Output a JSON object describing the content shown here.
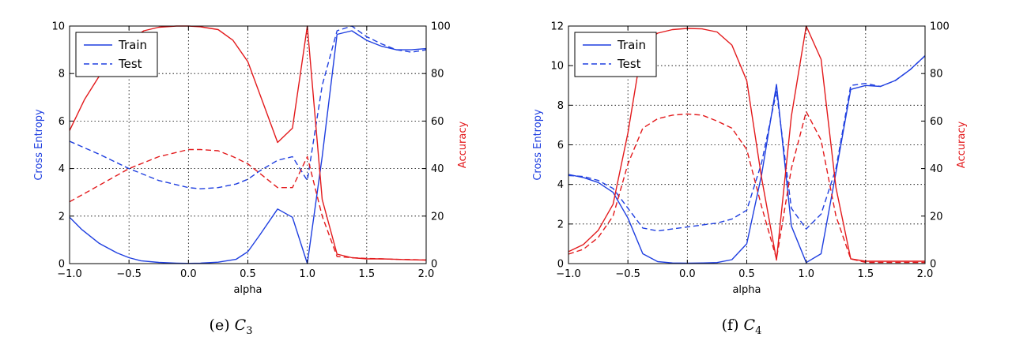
{
  "chart_data": [
    {
      "type": "line",
      "caption": "(e) C3",
      "caption_parts": {
        "prefix": "(e)",
        "symbol": "C",
        "subscript": "3"
      },
      "xlabel": "alpha",
      "ylabel_left": "Cross Entropy",
      "ylabel_right": "Accuracy",
      "xlim": [
        -1.0,
        2.0
      ],
      "ylim_left": [
        0,
        10
      ],
      "ylim_right": [
        0,
        100
      ],
      "xticks": [
        "−1.0",
        "−0.5",
        "0.0",
        "0.5",
        "1.0",
        "1.5",
        "2.0"
      ],
      "yticks_left": [
        "0",
        "2",
        "4",
        "6",
        "8",
        "10"
      ],
      "yticks_right": [
        "0",
        "20",
        "40",
        "60",
        "80",
        "100"
      ],
      "grid": true,
      "legend_position": "top-left",
      "legend": [
        {
          "label": "Train",
          "style": "solid",
          "color": "#1f3fe0"
        },
        {
          "label": "Test",
          "style": "dashed",
          "color": "#1f3fe0"
        }
      ],
      "colors": {
        "loss": "#1f3fe0",
        "accuracy": "#e31a1c"
      },
      "series": [
        {
          "axis": "left",
          "color": "#1f3fe0",
          "style": "solid",
          "x": [
            -1.0,
            -0.9,
            -0.75,
            -0.6,
            -0.5,
            -0.4,
            -0.25,
            -0.1,
            0.0,
            0.1,
            0.25,
            0.4,
            0.5,
            0.6,
            0.75,
            0.875,
            1.0,
            1.125,
            1.25,
            1.375,
            1.5,
            1.625,
            1.75,
            1.875,
            2.0
          ],
          "y": [
            1.95,
            1.45,
            0.85,
            0.45,
            0.25,
            0.12,
            0.05,
            0.02,
            0.01,
            0.02,
            0.06,
            0.18,
            0.5,
            1.2,
            2.3,
            1.95,
            0.0,
            4.5,
            9.65,
            9.8,
            9.4,
            9.15,
            9.0,
            9.0,
            9.05
          ]
        },
        {
          "axis": "left",
          "color": "#1f3fe0",
          "style": "dashed",
          "x": [
            -1.0,
            -0.75,
            -0.5,
            -0.25,
            0.0,
            0.1,
            0.25,
            0.4,
            0.5,
            0.6,
            0.75,
            0.875,
            1.0,
            1.125,
            1.25,
            1.375,
            1.5,
            1.625,
            1.75,
            1.875,
            2.0
          ],
          "y": [
            5.15,
            4.6,
            4.0,
            3.5,
            3.2,
            3.15,
            3.2,
            3.35,
            3.55,
            3.9,
            4.35,
            4.5,
            3.5,
            7.5,
            9.8,
            10.0,
            9.55,
            9.25,
            9.0,
            8.9,
            9.0
          ]
        },
        {
          "axis": "right",
          "color": "#e31a1c",
          "style": "solid",
          "x": [
            -1.0,
            -0.875,
            -0.75,
            -0.625,
            -0.5,
            -0.375,
            -0.25,
            -0.1,
            0.0,
            0.1,
            0.25,
            0.375,
            0.5,
            0.625,
            0.75,
            0.875,
            1.0,
            1.125,
            1.25,
            1.375,
            1.5,
            1.625,
            1.75,
            1.875,
            2.0
          ],
          "y": [
            56,
            69,
            79,
            88,
            94,
            98,
            99.5,
            100,
            100,
            99.7,
            98.5,
            94,
            85,
            68,
            51,
            57,
            100,
            27,
            4,
            2.5,
            2,
            2,
            1.8,
            1.6,
            1.5
          ]
        },
        {
          "axis": "right",
          "color": "#e31a1c",
          "style": "dashed",
          "x": [
            -1.0,
            -0.75,
            -0.5,
            -0.25,
            0.0,
            0.1,
            0.25,
            0.375,
            0.5,
            0.625,
            0.75,
            0.875,
            1.0,
            1.125,
            1.25,
            1.375,
            1.5,
            1.625,
            1.75,
            1.875,
            2.0
          ],
          "y": [
            26,
            33,
            40,
            45,
            48,
            48,
            47.5,
            45,
            42,
            37,
            32,
            32,
            45,
            20,
            3,
            2.5,
            2.2,
            2,
            1.8,
            1.7,
            1.5
          ]
        }
      ]
    },
    {
      "type": "line",
      "caption": "(f) C4",
      "caption_parts": {
        "prefix": "(f)",
        "symbol": "C",
        "subscript": "4"
      },
      "xlabel": "alpha",
      "ylabel_left": "Cross Entropy",
      "ylabel_right": "Accuracy",
      "xlim": [
        -1.0,
        2.0
      ],
      "ylim_left": [
        0,
        12
      ],
      "ylim_right": [
        0,
        100
      ],
      "xticks": [
        "−1.0",
        "−0.5",
        "0.0",
        "0.5",
        "1.0",
        "1.5",
        "2.0"
      ],
      "yticks_left": [
        "0",
        "2",
        "4",
        "6",
        "8",
        "10",
        "12"
      ],
      "yticks_right": [
        "0",
        "20",
        "40",
        "60",
        "80",
        "100"
      ],
      "grid": true,
      "legend_position": "top-left",
      "legend": [
        {
          "label": "Train",
          "style": "solid",
          "color": "#1f3fe0"
        },
        {
          "label": "Test",
          "style": "dashed",
          "color": "#1f3fe0"
        }
      ],
      "colors": {
        "loss": "#1f3fe0",
        "accuracy": "#e31a1c"
      },
      "series": [
        {
          "axis": "left",
          "color": "#1f3fe0",
          "style": "solid",
          "x": [
            -1.0,
            -0.875,
            -0.75,
            -0.625,
            -0.5,
            -0.375,
            -0.25,
            -0.125,
            0.0,
            0.125,
            0.25,
            0.375,
            0.5,
            0.625,
            0.75,
            0.875,
            1.0,
            1.125,
            1.25,
            1.375,
            1.5,
            1.625,
            1.75,
            1.875,
            2.0
          ],
          "y": [
            4.5,
            4.35,
            4.1,
            3.6,
            2.3,
            0.5,
            0.1,
            0.03,
            0.02,
            0.03,
            0.05,
            0.2,
            1.0,
            4.5,
            9.05,
            1.9,
            0.05,
            0.5,
            4.6,
            8.8,
            9.0,
            8.95,
            9.25,
            9.8,
            10.5
          ]
        },
        {
          "axis": "left",
          "color": "#1f3fe0",
          "style": "dashed",
          "x": [
            -1.0,
            -0.875,
            -0.75,
            -0.625,
            -0.5,
            -0.375,
            -0.25,
            -0.125,
            0.0,
            0.125,
            0.25,
            0.375,
            0.5,
            0.625,
            0.75,
            0.875,
            1.0,
            1.125,
            1.25,
            1.375,
            1.5,
            1.625,
            1.75,
            1.875,
            2.0
          ],
          "y": [
            4.45,
            4.4,
            4.2,
            3.8,
            2.8,
            1.8,
            1.65,
            1.75,
            1.85,
            1.95,
            2.05,
            2.25,
            2.7,
            5.1,
            8.7,
            2.8,
            1.75,
            2.5,
            4.8,
            9.0,
            9.1,
            8.95,
            9.25,
            9.8,
            10.5
          ]
        },
        {
          "axis": "right",
          "color": "#e31a1c",
          "style": "solid",
          "x": [
            -1.0,
            -0.875,
            -0.75,
            -0.625,
            -0.5,
            -0.375,
            -0.25,
            -0.125,
            0.0,
            0.125,
            0.25,
            0.375,
            0.5,
            0.625,
            0.75,
            0.875,
            1.0,
            1.125,
            1.25,
            1.375,
            1.5,
            1.625,
            1.75,
            1.875,
            2.0
          ],
          "y": [
            5,
            8,
            14,
            25,
            55,
            93,
            97,
            98.5,
            99,
            98.8,
            97.5,
            92,
            77,
            36,
            1.5,
            62,
            100,
            86,
            32,
            2,
            1,
            1,
            1,
            1,
            1
          ]
        },
        {
          "axis": "right",
          "color": "#e31a1c",
          "style": "dashed",
          "x": [
            -1.0,
            -0.875,
            -0.75,
            -0.625,
            -0.5,
            -0.375,
            -0.25,
            -0.125,
            0.0,
            0.125,
            0.25,
            0.375,
            0.5,
            0.625,
            0.75,
            0.875,
            1.0,
            1.125,
            1.25,
            1.375,
            1.5,
            1.625,
            1.75,
            1.875,
            2.0
          ],
          "y": [
            4,
            6,
            11,
            20,
            42,
            57,
            61,
            62.5,
            63,
            62.5,
            60,
            57,
            48,
            24,
            2,
            40,
            64,
            52,
            20,
            2,
            0.5,
            0.5,
            0.5,
            0.5,
            0.5
          ]
        }
      ]
    }
  ]
}
